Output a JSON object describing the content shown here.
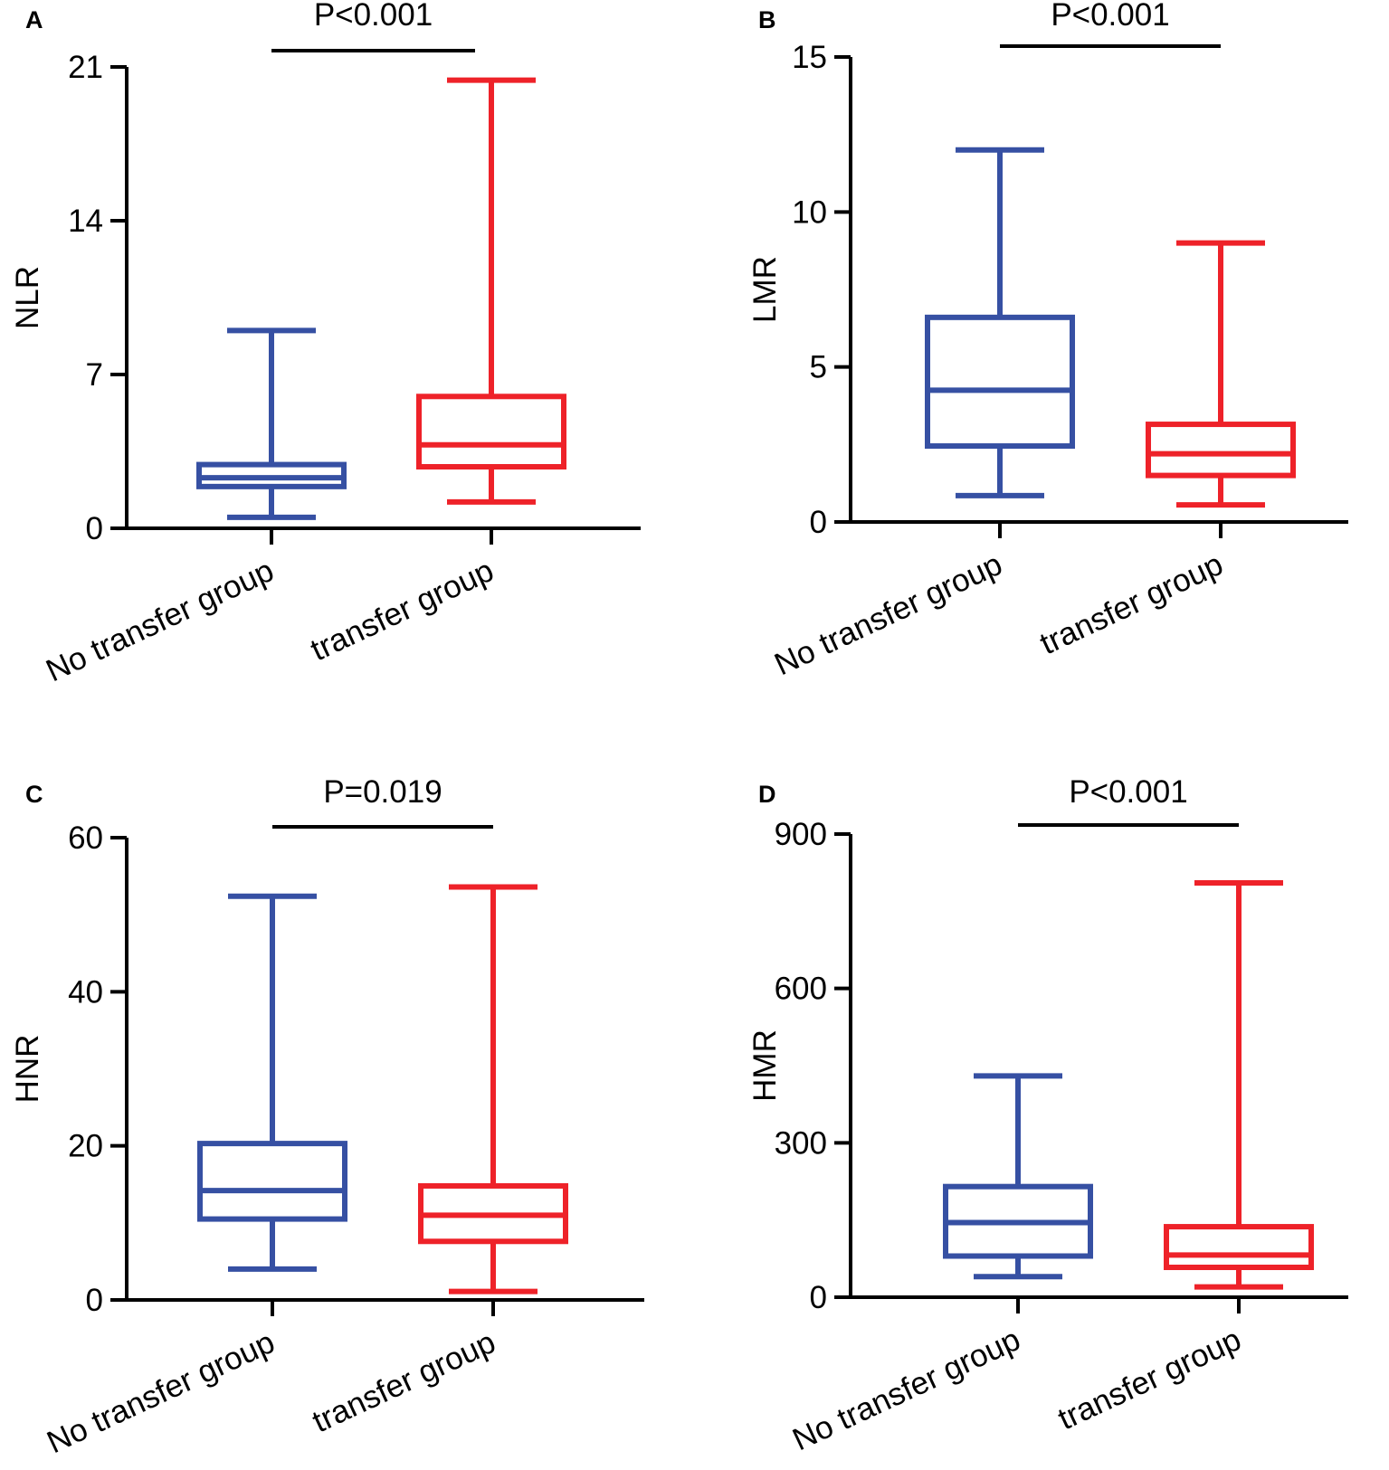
{
  "colors": {
    "no_transfer": "#3650a3",
    "transfer": "#ee2229",
    "axis": "#000000"
  },
  "chart_data": [
    {
      "type": "box",
      "panel": "A",
      "ylabel": "NLR",
      "ylim": [
        0,
        21
      ],
      "yticks": [
        0,
        7,
        14,
        21
      ],
      "categories": [
        "No transfer group",
        "transfer group"
      ],
      "p_value": "P<0.001",
      "boxes": [
        {
          "name": "No transfer group",
          "min": 0.5,
          "q1": 1.9,
          "median": 2.3,
          "q3": 2.9,
          "max": 9.0
        },
        {
          "name": "transfer group",
          "min": 1.2,
          "q1": 2.8,
          "median": 3.8,
          "q3": 6.0,
          "max": 20.4
        }
      ]
    },
    {
      "type": "box",
      "panel": "B",
      "ylabel": "LMR",
      "ylim": [
        0,
        15
      ],
      "yticks": [
        0,
        5,
        10,
        15
      ],
      "categories": [
        "No transfer group",
        "transfer group"
      ],
      "p_value": "P<0.001",
      "boxes": [
        {
          "name": "No transfer group",
          "min": 0.85,
          "q1": 2.45,
          "median": 4.25,
          "q3": 6.6,
          "max": 12.0
        },
        {
          "name": "transfer group",
          "min": 0.55,
          "q1": 1.5,
          "median": 2.2,
          "q3": 3.15,
          "max": 9.0
        }
      ]
    },
    {
      "type": "box",
      "panel": "C",
      "ylabel": "HNR",
      "ylim": [
        0,
        60
      ],
      "yticks": [
        0,
        20,
        40,
        60
      ],
      "categories": [
        "No transfer group",
        "transfer group"
      ],
      "p_value": "P=0.019",
      "boxes": [
        {
          "name": "No transfer group",
          "min": 4.0,
          "q1": 10.5,
          "median": 14.2,
          "q3": 20.3,
          "max": 52.4
        },
        {
          "name": "transfer group",
          "min": 1.1,
          "q1": 7.6,
          "median": 11.0,
          "q3": 14.8,
          "max": 53.6
        }
      ]
    },
    {
      "type": "box",
      "panel": "D",
      "ylabel": "HMR",
      "ylim": [
        0,
        900
      ],
      "yticks": [
        0,
        300,
        600,
        900
      ],
      "categories": [
        "No transfer group",
        "transfer group"
      ],
      "p_value": "P<0.001",
      "boxes": [
        {
          "name": "No transfer group",
          "min": 40,
          "q1": 80,
          "median": 145,
          "q3": 215,
          "max": 430
        },
        {
          "name": "transfer group",
          "min": 20,
          "q1": 58,
          "median": 82,
          "q3": 137,
          "max": 805
        }
      ]
    }
  ]
}
